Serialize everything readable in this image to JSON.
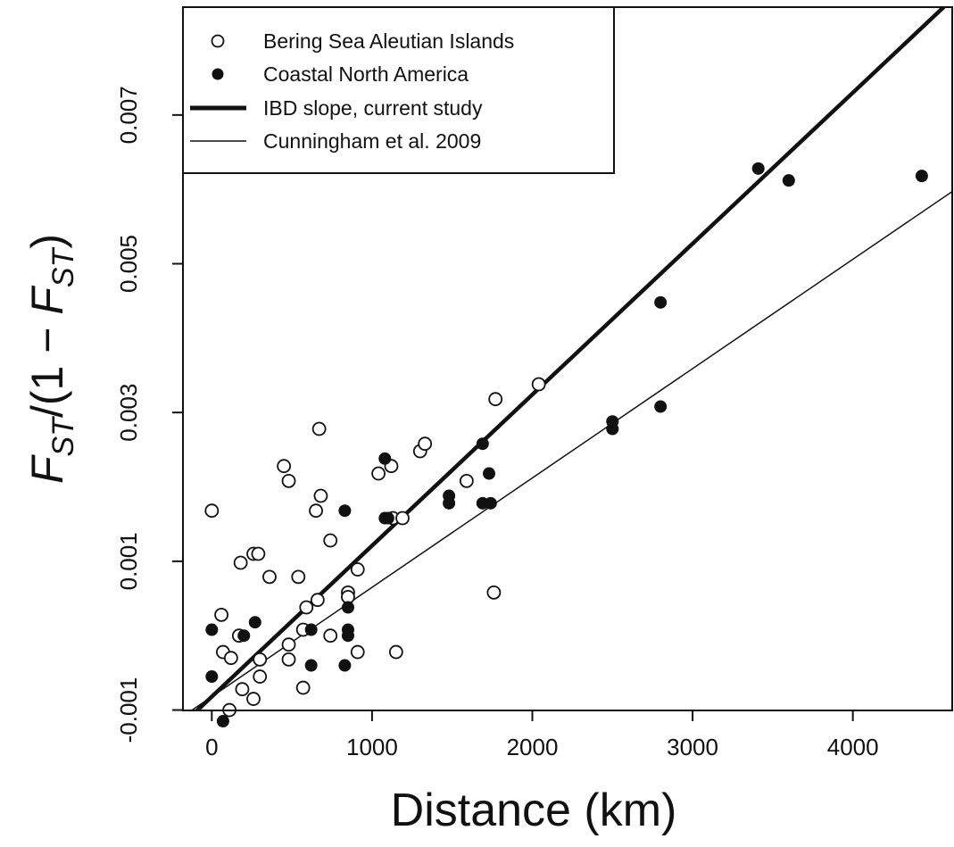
{
  "chart_data": {
    "type": "scatter",
    "title": "",
    "xlabel": "Distance (km)",
    "ylabel": {
      "f": "F",
      "st": "ST",
      "slash": "/",
      "mid": "(1 − ",
      "f2": "F",
      "st2": "ST",
      "close": ")"
    },
    "xlim": [
      -180,
      4620
    ],
    "ylim": [
      -0.0010055,
      0.00845
    ],
    "x_ticks": [
      {
        "value": 0,
        "label": "0"
      },
      {
        "value": 1000,
        "label": "1000"
      },
      {
        "value": 2000,
        "label": "2000"
      },
      {
        "value": 3000,
        "label": "3000"
      },
      {
        "value": 4000,
        "label": "4000"
      }
    ],
    "y_ticks": [
      {
        "value": -0.001,
        "label": "-0.001"
      },
      {
        "value": 0.001,
        "label": "0.001"
      },
      {
        "value": 0.003,
        "label": "0.003"
      },
      {
        "value": 0.005,
        "label": "0.005"
      },
      {
        "value": 0.007,
        "label": "0.007"
      }
    ],
    "grid": false,
    "legend_position": "top-left",
    "series": [
      {
        "name": "Bering Sea Aleutian Islands",
        "marker": "open-circle",
        "points": [
          [
            0,
            0.00168
          ],
          [
            60,
            0.00028
          ],
          [
            70,
            -0.00022
          ],
          [
            120,
            -0.0003
          ],
          [
            110,
            -0.001
          ],
          [
            180,
            0.00098
          ],
          [
            170,
            0.0
          ],
          [
            190,
            -0.00072
          ],
          [
            260,
            0.0011
          ],
          [
            290,
            0.0011
          ],
          [
            260,
            -0.00085
          ],
          [
            300,
            -0.00032
          ],
          [
            300,
            -0.00055
          ],
          [
            360,
            0.00079
          ],
          [
            450,
            0.00228
          ],
          [
            480,
            0.00208
          ],
          [
            480,
            -0.00012
          ],
          [
            480,
            -0.00032
          ],
          [
            540,
            0.00079
          ],
          [
            570,
            8e-05
          ],
          [
            570,
            -0.0007
          ],
          [
            590,
            0.00038
          ],
          [
            650,
            0.00168
          ],
          [
            660,
            0.00048
          ],
          [
            680,
            0.00188
          ],
          [
            670,
            0.00278
          ],
          [
            740,
            0.00128
          ],
          [
            740,
            0.0
          ],
          [
            850,
            0.00058
          ],
          [
            850,
            0.00052
          ],
          [
            910,
            0.00089
          ],
          [
            910,
            -0.00022
          ],
          [
            1040,
            0.00218
          ],
          [
            1120,
            0.00228
          ],
          [
            1130,
            0.00158
          ],
          [
            1150,
            -0.00022
          ],
          [
            1190,
            0.00158
          ],
          [
            1300,
            0.00248
          ],
          [
            1330,
            0.00258
          ],
          [
            1590,
            0.00208
          ],
          [
            1760,
            0.00058
          ],
          [
            1770,
            0.00318
          ],
          [
            2040,
            0.00338
          ]
        ]
      },
      {
        "name": "Coastal North America",
        "marker": "filled-circle",
        "points": [
          [
            0,
            8e-05
          ],
          [
            0,
            -0.00055
          ],
          [
            70,
            -0.00115
          ],
          [
            200,
            0.0
          ],
          [
            270,
            0.00018
          ],
          [
            620,
            8e-05
          ],
          [
            620,
            -0.0004
          ],
          [
            830,
            0.00168
          ],
          [
            830,
            -0.0004
          ],
          [
            850,
            0.00038
          ],
          [
            850,
            8e-05
          ],
          [
            850,
            0.0
          ],
          [
            1080,
            0.00238
          ],
          [
            1080,
            0.00158
          ],
          [
            1100,
            0.00158
          ],
          [
            1480,
            0.00188
          ],
          [
            1480,
            0.00178
          ],
          [
            1690,
            0.00258
          ],
          [
            1690,
            0.00178
          ],
          [
            1730,
            0.00218
          ],
          [
            1740,
            0.00178
          ],
          [
            2500,
            0.00288
          ],
          [
            2500,
            0.00278
          ],
          [
            2800,
            0.00448
          ],
          [
            2800,
            0.00308
          ],
          [
            3410,
            0.00628
          ],
          [
            3600,
            0.00612
          ],
          [
            4430,
            0.00618
          ]
        ]
      }
    ],
    "lines": [
      {
        "name": "IBD slope, current study",
        "intercept": -0.00082,
        "slope": 2.03e-06,
        "width": "thick"
      },
      {
        "name": "Cunningham et al. 2009",
        "intercept": -0.00082,
        "slope": 1.47e-06,
        "width": "thin"
      }
    ],
    "legend": [
      {
        "label": "Bering Sea Aleutian Islands",
        "symbol": "open-circle"
      },
      {
        "label": "Coastal North America",
        "symbol": "filled-circle"
      },
      {
        "label": "IBD slope, current study",
        "symbol": "thick-line"
      },
      {
        "label": "Cunningham et al. 2009",
        "symbol": "thin-line"
      }
    ]
  }
}
